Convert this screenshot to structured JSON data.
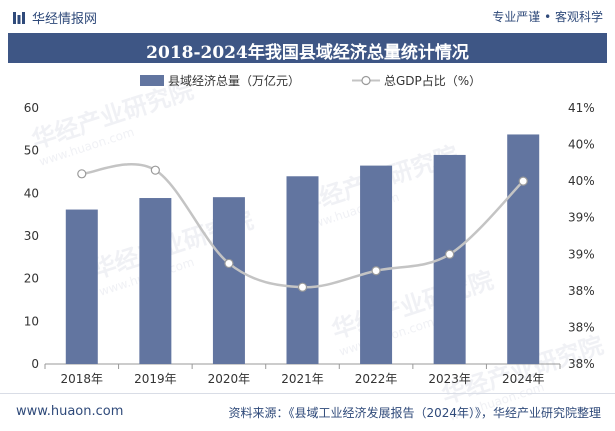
{
  "header": {
    "brand": "华经情报网",
    "slogan": "专业严谨 • 客观科学"
  },
  "footer": {
    "site": "www.huaon.com",
    "source": "资料来源：《县域工业经济发展报告（2024年）》，华经产业研究院整理"
  },
  "watermark": {
    "text": "华经产业研究院",
    "url": "www.huaon.com"
  },
  "chart_data": {
    "type": "bar",
    "title": "2018-2024年我国县域经济总量统计情况",
    "categories": [
      "2018年",
      "2019年",
      "2020年",
      "2021年",
      "2022年",
      "2023年",
      "2024年"
    ],
    "series": [
      {
        "name": "县域经济总量（万亿元）",
        "type": "bar",
        "axis": "left",
        "color": "#6275a0",
        "values": [
          36.2,
          38.9,
          39.1,
          44.0,
          46.5,
          49.0,
          53.8
        ]
      },
      {
        "name": "总GDP占比（%）",
        "type": "line",
        "axis": "right",
        "color": "#c4c4c4",
        "values": [
          40.1,
          40.15,
          38.875,
          38.55,
          38.775,
          39.0,
          40.0
        ]
      }
    ],
    "y_left": {
      "min": 0,
      "max": 60,
      "ticks": [
        0,
        10,
        20,
        30,
        40,
        50,
        60
      ],
      "tick_labels": [
        "0",
        "10",
        "20",
        "30",
        "40",
        "50",
        "60"
      ]
    },
    "y_right": {
      "min": 37.5,
      "max": 41,
      "ticks": [
        37.5,
        38,
        38.5,
        39,
        39.5,
        40,
        40.5,
        41
      ],
      "tick_labels": [
        "38%",
        "38%",
        "38%",
        "39%",
        "39%",
        "40%",
        "40%",
        "41%"
      ]
    },
    "legend_position": "top-center",
    "grid": false
  }
}
